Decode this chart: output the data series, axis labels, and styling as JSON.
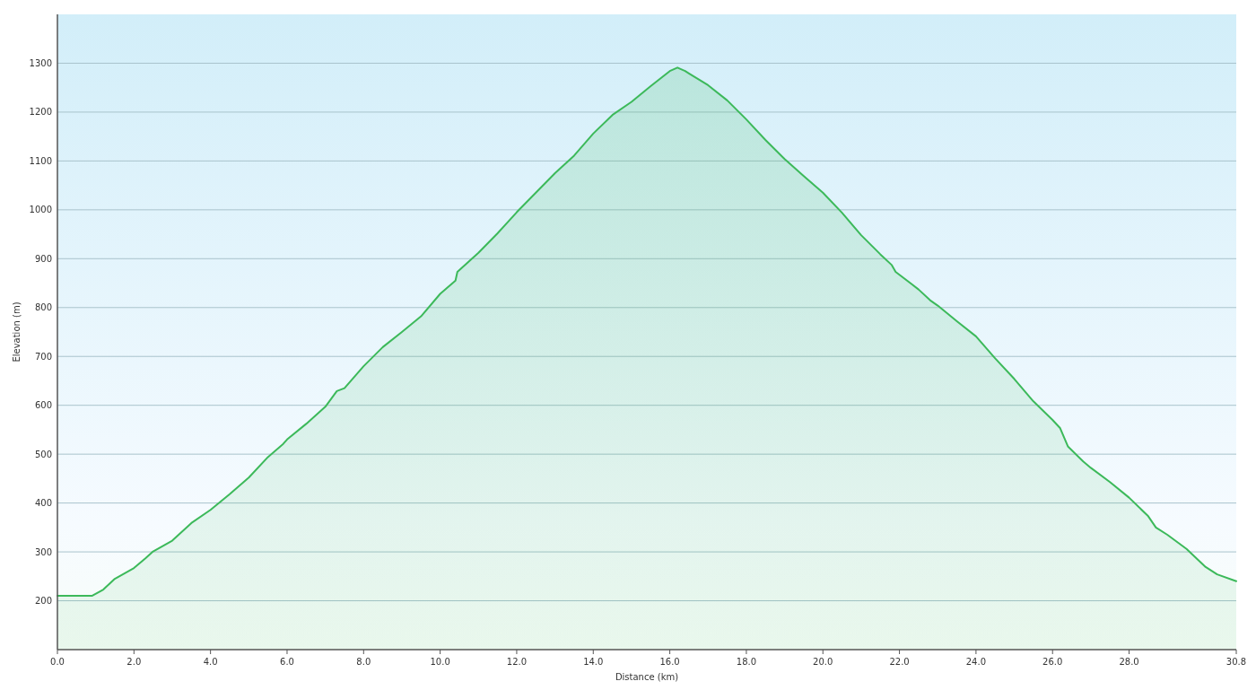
{
  "chart_data": {
    "type": "area",
    "xlabel": "Distance (km)",
    "ylabel": "Elevation (m)",
    "x": [
      0,
      0.9,
      1.2,
      1.5,
      2.0,
      2.3,
      2.5,
      3.0,
      3.5,
      4.0,
      4.5,
      5.0,
      5.5,
      5.9,
      6.0,
      6.5,
      7.0,
      7.3,
      7.5,
      8.0,
      8.5,
      9.0,
      9.5,
      10.0,
      10.4,
      10.45,
      11.0,
      11.5,
      12.0,
      12.5,
      13.0,
      13.5,
      14.0,
      14.5,
      15.0,
      15.5,
      16.0,
      16.2,
      16.4,
      16.5,
      17.0,
      17.5,
      18.0,
      18.5,
      19.0,
      19.5,
      20.0,
      20.5,
      21.0,
      21.5,
      21.8,
      21.9,
      22.5,
      22.8,
      23.0,
      23.5,
      24.0,
      24.5,
      25.0,
      25.5,
      26.0,
      26.2,
      26.4,
      26.8,
      27.0,
      27.5,
      28.0,
      28.5,
      28.7,
      29.0,
      29.5,
      30.0,
      30.3,
      30.8
    ],
    "series": [
      {
        "color": "#3cb95a",
        "values": [
          210,
          210,
          223,
          245,
          267,
          287,
          301,
          323,
          359,
          386,
          418,
          452,
          494,
          521,
          530,
          562,
          597,
          629,
          635,
          680,
          719,
          750,
          782,
          828,
          855,
          873,
          912,
          952,
          995,
          1035,
          1075,
          1111,
          1156,
          1194,
          1221,
          1253,
          1284,
          1291,
          1284,
          1279,
          1255,
          1224,
          1185,
          1143,
          1104,
          1069,
          1035,
          994,
          948,
          909,
          887,
          873,
          837,
          815,
          804,
          772,
          741,
          696,
          654,
          608,
          570,
          553,
          516,
          485,
          472,
          443,
          411,
          373,
          350,
          335,
          306,
          269,
          254,
          240
        ]
      }
    ],
    "xlim": [
      0,
      30.8
    ],
    "ylim": [
      100,
      1400
    ],
    "xticks": [
      {
        "value": 0,
        "label": "0.0"
      },
      {
        "value": 2,
        "label": "2.0"
      },
      {
        "value": 4,
        "label": "4.0"
      },
      {
        "value": 6,
        "label": "6.0"
      },
      {
        "value": 8,
        "label": "8.0"
      },
      {
        "value": 10,
        "label": "10.0"
      },
      {
        "value": 12,
        "label": "12.0"
      },
      {
        "value": 14,
        "label": "14.0"
      },
      {
        "value": 16,
        "label": "16.0"
      },
      {
        "value": 18,
        "label": "18.0"
      },
      {
        "value": 20,
        "label": "20.0"
      },
      {
        "value": 22,
        "label": "22.0"
      },
      {
        "value": 24,
        "label": "24.0"
      },
      {
        "value": 26,
        "label": "26.0"
      },
      {
        "value": 28,
        "label": "28.0"
      },
      {
        "value": 30.8,
        "label": "30.8"
      }
    ],
    "yticks": [
      200,
      300,
      400,
      500,
      600,
      700,
      800,
      900,
      1000,
      1100,
      1200,
      1300
    ],
    "grid": "y"
  }
}
